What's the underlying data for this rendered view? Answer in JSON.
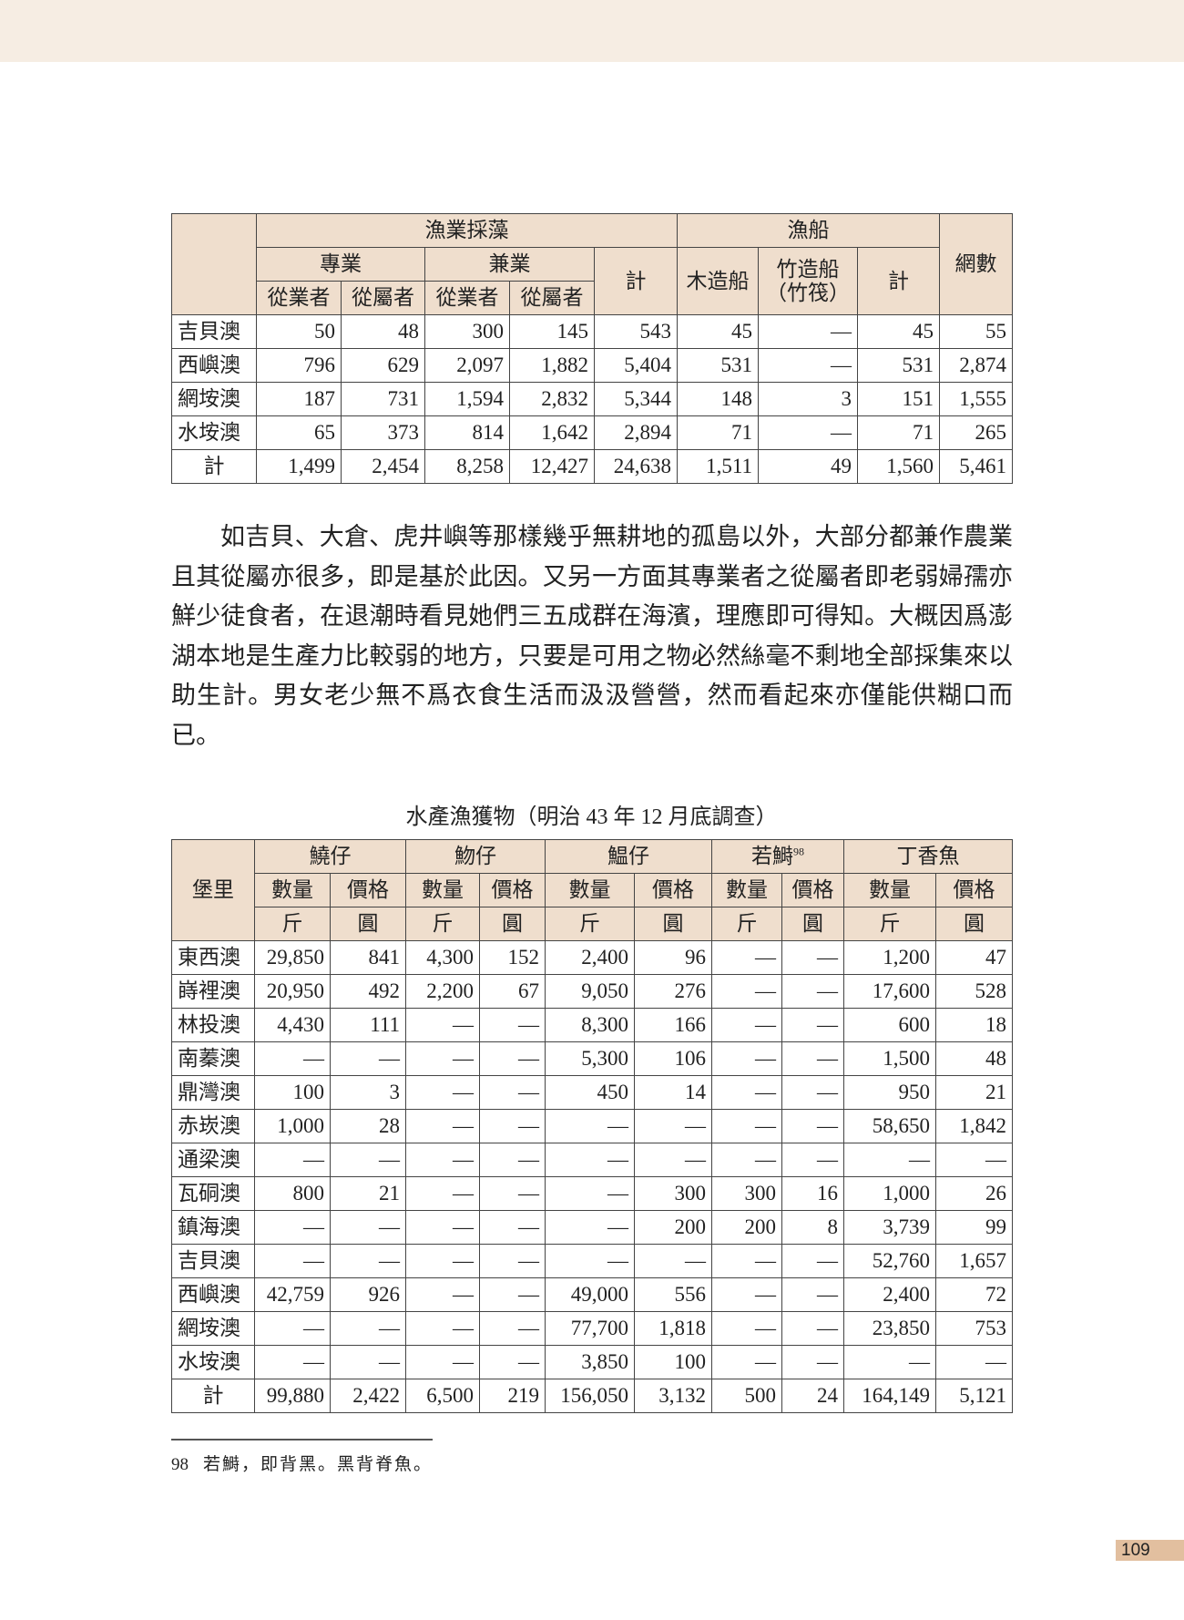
{
  "table1": {
    "headers": {
      "group_fishing": "漁業採藻",
      "group_boats": "漁船",
      "nets": "網數",
      "fulltime": "專業",
      "parttime": "兼業",
      "total": "計",
      "wooden": "木造船",
      "bamboo_line1": "竹造船",
      "bamboo_line2": "（竹筏）",
      "workers": "從業者",
      "dependents": "從屬者"
    },
    "rows": [
      [
        "吉貝澳",
        "50",
        "48",
        "300",
        "145",
        "543",
        "45",
        "—",
        "45",
        "55"
      ],
      [
        "西嶼澳",
        "796",
        "629",
        "2,097",
        "1,882",
        "5,404",
        "531",
        "—",
        "531",
        "2,874"
      ],
      [
        "網垵澳",
        "187",
        "731",
        "1,594",
        "2,832",
        "5,344",
        "148",
        "3",
        "151",
        "1,555"
      ],
      [
        "水垵澳",
        "65",
        "373",
        "814",
        "1,642",
        "2,894",
        "71",
        "—",
        "71",
        "265"
      ],
      [
        "計",
        "1,499",
        "2,454",
        "8,258",
        "12,427",
        "24,638",
        "1,511",
        "49",
        "1,560",
        "5,461"
      ]
    ]
  },
  "paragraph": "如吉貝、大倉、虎井嶼等那樣幾乎無耕地的孤島以外，大部分都兼作農業且其從屬亦很多，即是基於此因。又另一方面其專業者之從屬者即老弱婦孺亦鮮少徒食者，在退潮時看見她們三五成群在海濱，理應即可得知。大概因爲澎湖本地是生產力比較弱的地方，只要是可用之物必然絲毫不剩地全部採集來以助生計。男女老少無不爲衣食生活而汲汲營營，然而看起來亦僅能供糊口而已。",
  "table2": {
    "caption": "水產漁獲物（明治 43 年 12 月底調查）",
    "headers": {
      "village": "堡里",
      "fish": [
        "鱙仔",
        "魩仔",
        "鰛仔",
        "若鰣",
        "丁香魚"
      ],
      "footnote_ref": "98",
      "quantity": "數量",
      "price": "價格",
      "unit_qty": "斤",
      "unit_price": "圓"
    },
    "rows": [
      [
        "東西澳",
        "29,850",
        "841",
        "4,300",
        "152",
        "2,400",
        "96",
        "—",
        "—",
        "1,200",
        "47"
      ],
      [
        "嵵裡澳",
        "20,950",
        "492",
        "2,200",
        "67",
        "9,050",
        "276",
        "—",
        "—",
        "17,600",
        "528"
      ],
      [
        "林投澳",
        "4,430",
        "111",
        "—",
        "—",
        "8,300",
        "166",
        "—",
        "—",
        "600",
        "18"
      ],
      [
        "南蓁澳",
        "—",
        "—",
        "—",
        "—",
        "5,300",
        "106",
        "—",
        "—",
        "1,500",
        "48"
      ],
      [
        "鼎灣澳",
        "100",
        "3",
        "—",
        "—",
        "450",
        "14",
        "—",
        "—",
        "950",
        "21"
      ],
      [
        "赤崁澳",
        "1,000",
        "28",
        "—",
        "—",
        "—",
        "—",
        "—",
        "—",
        "58,650",
        "1,842"
      ],
      [
        "通梁澳",
        "—",
        "—",
        "—",
        "—",
        "—",
        "—",
        "—",
        "—",
        "—",
        "—"
      ],
      [
        "瓦硐澳",
        "800",
        "21",
        "—",
        "—",
        "—",
        "300",
        "300",
        "16",
        "1,000",
        "26"
      ],
      [
        "鎮海澳",
        "—",
        "—",
        "—",
        "—",
        "—",
        "200",
        "200",
        "8",
        "3,739",
        "99"
      ],
      [
        "吉貝澳",
        "—",
        "—",
        "—",
        "—",
        "—",
        "—",
        "—",
        "—",
        "52,760",
        "1,657"
      ],
      [
        "西嶼澳",
        "42,759",
        "926",
        "—",
        "—",
        "49,000",
        "556",
        "—",
        "—",
        "2,400",
        "72"
      ],
      [
        "網垵澳",
        "—",
        "—",
        "—",
        "—",
        "77,700",
        "1,818",
        "—",
        "—",
        "23,850",
        "753"
      ],
      [
        "水垵澳",
        "—",
        "—",
        "—",
        "—",
        "3,850",
        "100",
        "—",
        "—",
        "—",
        "—"
      ],
      [
        "計",
        "99,880",
        "2,422",
        "6,500",
        "219",
        "156,050",
        "3,132",
        "500",
        "24",
        "164,149",
        "5,121"
      ]
    ]
  },
  "footnote": {
    "number": "98",
    "text": "若鰣，即背黑。黑背脊魚。"
  },
  "page_number": "109",
  "colors": {
    "header_bg": "#efdecd",
    "top_band": "#f6ede3",
    "page_tab": "#e2bf9f"
  }
}
